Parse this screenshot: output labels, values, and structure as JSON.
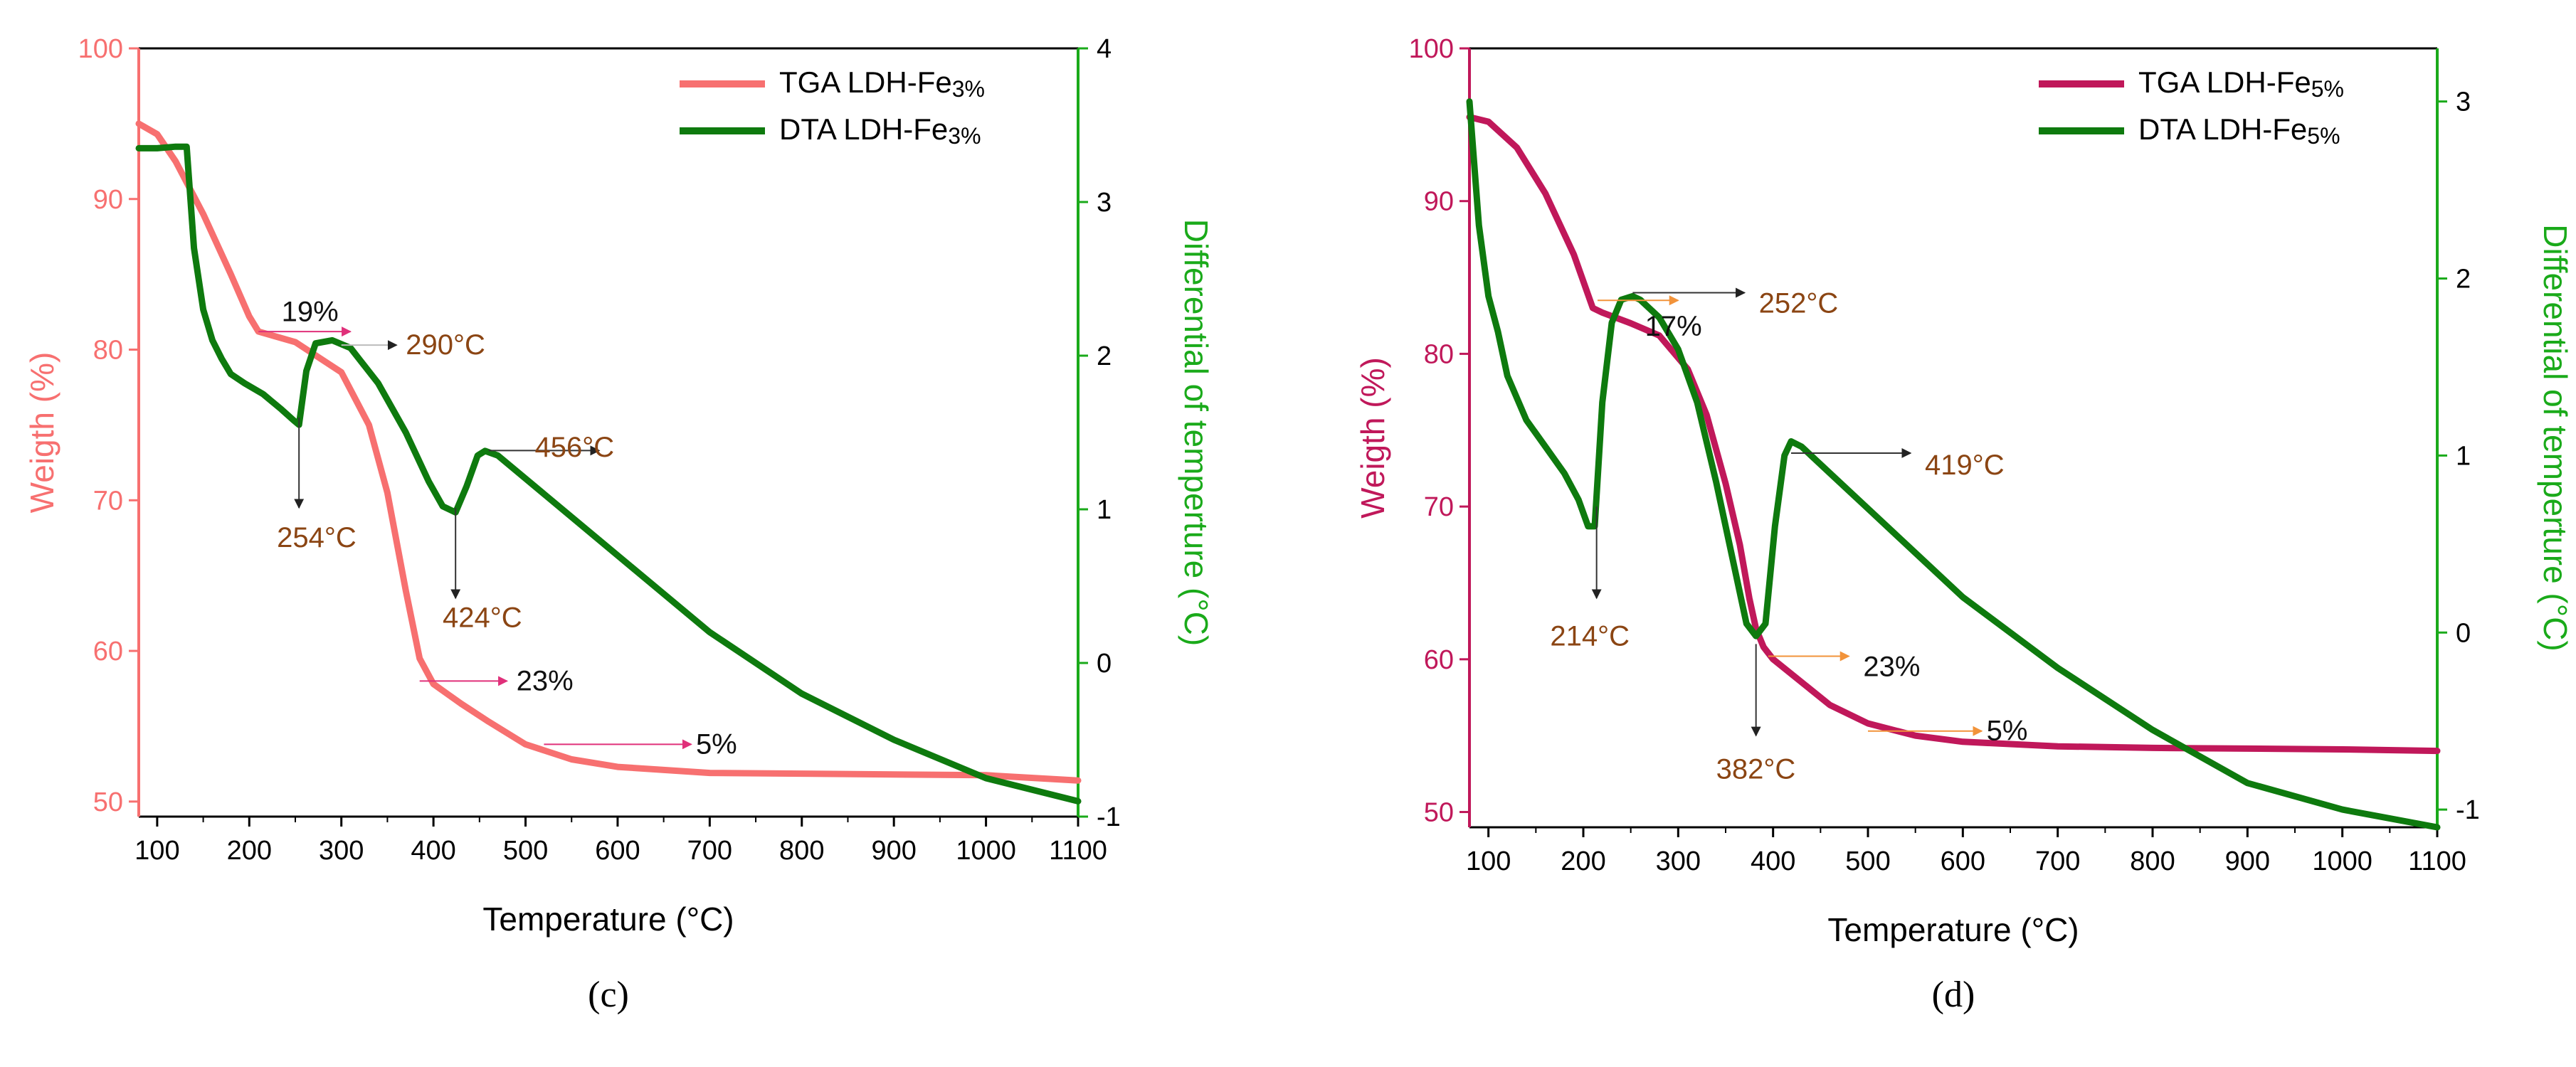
{
  "chart_data": [
    {
      "type": "line",
      "panel_label": "(c)",
      "xlabel": "Temperature (°C)",
      "ylabel": "Weigth (%)",
      "y2label": "Differential of temperture (°C)",
      "xlim": [
        80,
        1100
      ],
      "ylim": [
        49,
        100
      ],
      "y2lim": [
        -1,
        4
      ],
      "xticks": [
        100,
        200,
        300,
        400,
        500,
        600,
        700,
        800,
        900,
        1000,
        1100
      ],
      "yticks": [
        50,
        60,
        70,
        80,
        90,
        100
      ],
      "y2ticks": [
        -1,
        0,
        1,
        2,
        3,
        4
      ],
      "colors": {
        "tga": "#f77070",
        "dta": "#0e7a0e",
        "left_axis": "#f77070",
        "right_axis": "#1aaa1a",
        "annotation_text": "#8b4513",
        "arrow": "#e0307a",
        "black_arrow": "#222222"
      },
      "legend": {
        "position": "top-right",
        "tga_label": "TGA LDH-Fe",
        "tga_sub": "3%",
        "dta_label": "DTA LDH-Fe",
        "dta_sub": "3%"
      },
      "series": [
        {
          "name": "TGA LDH-Fe3%",
          "axis": "left",
          "x": [
            80,
            100,
            120,
            150,
            180,
            200,
            210,
            250,
            300,
            330,
            350,
            370,
            385,
            400,
            430,
            460,
            500,
            550,
            600,
            700,
            800,
            900,
            1000,
            1100
          ],
          "y": [
            95,
            94.3,
            92.5,
            89,
            85,
            82.2,
            81.2,
            80.5,
            78.5,
            75,
            70.5,
            64,
            59.5,
            57.8,
            56.5,
            55.3,
            53.8,
            52.8,
            52.3,
            51.9,
            51.85,
            51.8,
            51.75,
            51.4
          ]
        },
        {
          "name": "DTA LDH-Fe3%",
          "axis": "right",
          "x": [
            80,
            100,
            120,
            132,
            140,
            150,
            160,
            170,
            180,
            195,
            215,
            235,
            248,
            254,
            262,
            272,
            290,
            310,
            340,
            370,
            395,
            410,
            424,
            436,
            448,
            456,
            470,
            520,
            600,
            700,
            800,
            900,
            1000,
            1100
          ],
          "y": [
            3.35,
            3.35,
            3.36,
            3.36,
            2.7,
            2.3,
            2.1,
            1.98,
            1.88,
            1.82,
            1.75,
            1.65,
            1.58,
            1.55,
            1.9,
            2.08,
            2.1,
            2.05,
            1.82,
            1.5,
            1.18,
            1.02,
            0.98,
            1.15,
            1.35,
            1.38,
            1.35,
            1.1,
            0.7,
            0.2,
            -0.2,
            -0.5,
            -0.75,
            -0.9
          ]
        }
      ],
      "annotations": [
        {
          "label": "19%",
          "color": "black",
          "text_at": [
            235,
            82.5
          ],
          "arrow": "pink-right",
          "from": [
            210,
            81.2
          ],
          "to": [
            310,
            81.2
          ]
        },
        {
          "label": "290°C",
          "color": "brown",
          "text_at": [
            370,
            80.3
          ],
          "arrow": "gray-right",
          "from": [
            300,
            80.3
          ],
          "to": [
            360,
            80.3
          ]
        },
        {
          "label": "456°C",
          "color": "brown",
          "text_at": [
            510,
            73.5
          ],
          "arrow": "black-right",
          "from": [
            460,
            73.3
          ],
          "to": [
            580,
            73.3
          ]
        },
        {
          "label": "254°C",
          "color": "brown",
          "text_at": [
            230,
            67.5
          ],
          "arrow": "black-down",
          "from": [
            254,
            75.5
          ],
          "to": [
            254,
            69.5
          ]
        },
        {
          "label": "424°C",
          "color": "brown",
          "text_at": [
            410,
            62.2
          ],
          "arrow": "black-down",
          "from": [
            424,
            69.5
          ],
          "to": [
            424,
            63.5
          ]
        },
        {
          "label": "23%",
          "color": "black",
          "text_at": [
            490,
            58
          ],
          "arrow": "pink-right",
          "from": [
            385,
            58
          ],
          "to": [
            480,
            58
          ]
        },
        {
          "label": "5%",
          "color": "black",
          "text_at": [
            685,
            53.8
          ],
          "arrow": "pink-right",
          "from": [
            520,
            53.8
          ],
          "to": [
            680,
            53.8
          ]
        }
      ]
    },
    {
      "type": "line",
      "panel_label": "(d)",
      "xlabel": "Temperature (°C)",
      "ylabel": "Weigth (%)",
      "y2label": "Differential of temperture (°C)",
      "xlim": [
        80,
        1100
      ],
      "ylim": [
        49,
        100
      ],
      "y2lim": [
        -1.1,
        3.3
      ],
      "xticks": [
        100,
        200,
        300,
        400,
        500,
        600,
        700,
        800,
        900,
        1000,
        1100
      ],
      "yticks": [
        50,
        60,
        70,
        80,
        90,
        100
      ],
      "y2ticks": [
        -1,
        0,
        1,
        2,
        3
      ],
      "colors": {
        "tga": "#c0185a",
        "dta": "#0e7a0e",
        "left_axis": "#c0185a",
        "right_axis": "#1aaa1a",
        "annotation_text": "#8b4513",
        "arrow": "#f2933a",
        "black_arrow": "#222222"
      },
      "legend": {
        "position": "top-right",
        "tga_label": "TGA LDH-Fe",
        "tga_sub": "5%",
        "dta_label": "DTA LDH-Fe",
        "dta_sub": "5%"
      },
      "series": [
        {
          "name": "TGA LDH-Fe5%",
          "axis": "left",
          "x": [
            80,
            100,
            130,
            160,
            190,
            210,
            220,
            250,
            280,
            310,
            330,
            350,
            365,
            375,
            382,
            390,
            400,
            430,
            460,
            500,
            550,
            600,
            700,
            800,
            900,
            1000,
            1100
          ],
          "y": [
            95.5,
            95.2,
            93.5,
            90.5,
            86.5,
            83,
            82.7,
            82,
            81.2,
            79,
            76,
            71.5,
            67.5,
            64,
            62,
            60.8,
            60,
            58.5,
            57,
            55.8,
            55,
            54.6,
            54.3,
            54.2,
            54.15,
            54.1,
            54
          ]
        },
        {
          "name": "DTA LDH-Fe5%",
          "axis": "right",
          "x": [
            80,
            90,
            100,
            110,
            120,
            140,
            160,
            180,
            195,
            205,
            212,
            220,
            230,
            240,
            252,
            260,
            280,
            300,
            320,
            340,
            360,
            372,
            382,
            392,
            402,
            412,
            419,
            430,
            460,
            500,
            550,
            600,
            700,
            800,
            900,
            1000,
            1100
          ],
          "y": [
            3.0,
            2.3,
            1.9,
            1.7,
            1.45,
            1.2,
            1.05,
            0.9,
            0.75,
            0.6,
            0.6,
            1.3,
            1.75,
            1.88,
            1.9,
            1.88,
            1.78,
            1.6,
            1.3,
            0.85,
            0.35,
            0.05,
            -0.02,
            0.05,
            0.6,
            1.0,
            1.08,
            1.05,
            0.9,
            0.7,
            0.45,
            0.2,
            -0.2,
            -0.55,
            -0.85,
            -1.0,
            -1.1
          ]
        }
      ],
      "annotations": [
        {
          "label": "17%",
          "color": "black",
          "text_at": [
            265,
            81.8
          ],
          "arrow": "orange-right",
          "from": [
            215,
            83.5
          ],
          "to": [
            300,
            83.5
          ]
        },
        {
          "label": "252°C",
          "color": "brown",
          "text_at": [
            385,
            83.3
          ],
          "arrow": "black-right",
          "from": [
            252,
            84
          ],
          "to": [
            370,
            84
          ]
        },
        {
          "label": "419°C",
          "color": "brown",
          "text_at": [
            560,
            72.7
          ],
          "arrow": "black-right",
          "from": [
            419,
            73.5
          ],
          "to": [
            545,
            73.5
          ]
        },
        {
          "label": "214°C",
          "color": "brown",
          "text_at": [
            165,
            61.5
          ],
          "arrow": "black-down",
          "from": [
            214,
            70
          ],
          "to": [
            214,
            64
          ]
        },
        {
          "label": "382°C",
          "color": "brown",
          "text_at": [
            340,
            52.8
          ],
          "arrow": "black-down",
          "from": [
            382,
            61
          ],
          "to": [
            382,
            55
          ]
        },
        {
          "label": "23%",
          "color": "black",
          "text_at": [
            495,
            59.5
          ],
          "arrow": "orange-right",
          "from": [
            395,
            60.2
          ],
          "to": [
            480,
            60.2
          ]
        },
        {
          "label": "5%",
          "color": "black",
          "text_at": [
            625,
            55.3
          ],
          "arrow": "orange-right",
          "from": [
            500,
            55.3
          ],
          "to": [
            620,
            55.3
          ]
        }
      ]
    }
  ]
}
